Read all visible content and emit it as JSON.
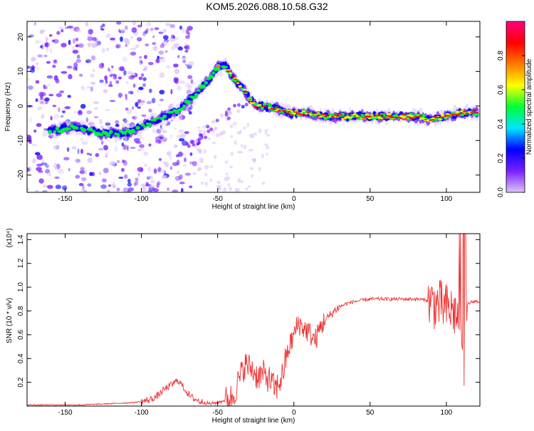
{
  "title": "KOM5.2026.088.10.58.G32",
  "colors": {
    "snr_line": "#ee3333",
    "axis": "#000000",
    "background": "#ffffff"
  },
  "chart_data": [
    {
      "type": "heatmap",
      "title": "KOM5.2026.088.10.58.G32",
      "xlabel": "Height of straight line (km)",
      "ylabel": "Frequency (Hz)",
      "xlim": [
        -175,
        122
      ],
      "ylim": [
        -25,
        24.5
      ],
      "xticks": [
        -150,
        -100,
        -50,
        0,
        50,
        100
      ],
      "yticks": [
        -20,
        -10,
        0,
        10,
        20
      ],
      "ridge": {
        "x": [
          -155,
          -145,
          -135,
          -125,
          -115,
          -105,
          -95,
          -85,
          -75,
          -65,
          -55,
          -50,
          -45,
          -40,
          -35,
          -30,
          -25,
          -20,
          -10,
          0,
          10,
          20,
          30,
          40,
          50,
          60,
          70,
          80,
          90,
          100,
          110,
          120
        ],
        "freq": [
          -7,
          -6,
          -7,
          -8,
          -8,
          -7,
          -5,
          -3,
          -1,
          3,
          8,
          11,
          12,
          8,
          6,
          3,
          0,
          0,
          -1,
          -2,
          -2,
          -3,
          -3,
          -3,
          -3,
          -3,
          -3,
          -3,
          -4,
          -3,
          -2,
          -2
        ]
      },
      "colorbar": {
        "label": "Normalized spectral amplitude",
        "range": [
          0.0,
          1.0
        ],
        "ticks": [
          "0.0",
          "0.2",
          "0.4",
          "0.6",
          "0.8"
        ],
        "colors": [
          "#dcc6f8",
          "#7a20ff",
          "#0000ff",
          "#00e5ff",
          "#00ff33",
          "#ffff00",
          "#ff7a00",
          "#ff0000",
          "#ff0080"
        ]
      }
    },
    {
      "type": "line",
      "xlabel": "Height of straight line (km)",
      "ylabel": "SNR (10 * v/v)",
      "y_multiplier": "(x10⁴)",
      "xlim": [
        -175,
        122
      ],
      "ylim": [
        0,
        1.45
      ],
      "xticks": [
        -150,
        -100,
        -50,
        0,
        50,
        100
      ],
      "yticks": [
        0.2,
        0.4,
        0.6,
        0.8,
        1.0,
        1.2,
        1.4
      ],
      "series": [
        {
          "name": "SNR",
          "x": [
            -175,
            -160,
            -140,
            -120,
            -105,
            -95,
            -90,
            -85,
            -80,
            -76,
            -72,
            -68,
            -62,
            -55,
            -50,
            -45,
            -40,
            -36,
            -32,
            -28,
            -24,
            -20,
            -16,
            -12,
            -8,
            -4,
            0,
            3,
            6,
            10,
            14,
            18,
            22,
            28,
            34,
            40,
            50,
            60,
            70,
            80,
            88,
            92,
            96,
            100,
            104,
            108,
            110,
            112,
            114,
            118,
            122
          ],
          "y": [
            0.01,
            0.01,
            0.01,
            0.02,
            0.03,
            0.05,
            0.08,
            0.14,
            0.18,
            0.22,
            0.15,
            0.08,
            0.04,
            0.02,
            0.03,
            0.05,
            0.08,
            0.22,
            0.35,
            0.32,
            0.25,
            0.27,
            0.22,
            0.14,
            0.24,
            0.46,
            0.6,
            0.7,
            0.66,
            0.62,
            0.55,
            0.68,
            0.74,
            0.82,
            0.86,
            0.88,
            0.9,
            0.9,
            0.9,
            0.9,
            0.89,
            0.86,
            0.85,
            0.82,
            0.8,
            0.75,
            0.7,
            0.6,
            0.86,
            0.88,
            0.88
          ]
        }
      ]
    }
  ]
}
